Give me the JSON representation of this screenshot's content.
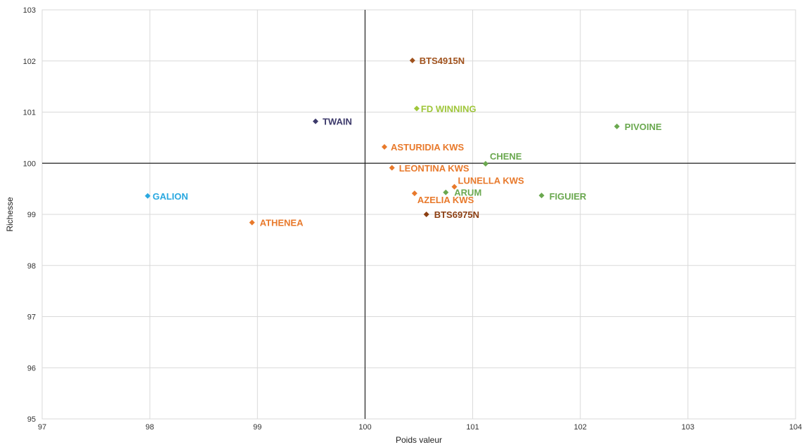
{
  "chart_data": {
    "type": "scatter",
    "title": "",
    "xlabel": "Poids valeur",
    "ylabel": "Richesse",
    "xlim": [
      97,
      104
    ],
    "ylim": [
      95,
      103
    ],
    "x_ticks": [
      "97",
      "98",
      "99",
      "100",
      "101",
      "102",
      "103",
      "104"
    ],
    "y_ticks": [
      "95",
      "96",
      "97",
      "98",
      "99",
      "100",
      "101",
      "102",
      "103"
    ],
    "reference_lines": {
      "x": 100,
      "y": 100
    },
    "grid": true,
    "legend": "none",
    "points": [
      {
        "label": "BTS4915N",
        "x": 100.44,
        "y": 102.01,
        "color": "#a0521d"
      },
      {
        "label": "FD WINNING",
        "x": 100.48,
        "y": 101.07,
        "color": "#9fc63a"
      },
      {
        "label": "TWAIN",
        "x": 99.54,
        "y": 100.82,
        "color": "#3d3a6b"
      },
      {
        "label": "PIVOINE",
        "x": 102.34,
        "y": 100.72,
        "color": "#6aa84f"
      },
      {
        "label": "ASTURIDIA KWS",
        "x": 100.18,
        "y": 100.32,
        "color": "#e8792b"
      },
      {
        "label": "CHENE",
        "x": 101.12,
        "y": 99.99,
        "color": "#6aa84f"
      },
      {
        "label": "LEONTINA KWS",
        "x": 100.25,
        "y": 99.91,
        "color": "#e8792b"
      },
      {
        "label": "LUNELLA KWS",
        "x": 100.83,
        "y": 99.54,
        "color": "#e8792b"
      },
      {
        "label": "ARUM",
        "x": 100.75,
        "y": 99.43,
        "color": "#6aa84f"
      },
      {
        "label": "AZELIA KWS",
        "x": 100.46,
        "y": 99.41,
        "color": "#e8792b"
      },
      {
        "label": "FIGUIER",
        "x": 101.64,
        "y": 99.37,
        "color": "#6aa84f"
      },
      {
        "label": "GALION",
        "x": 97.98,
        "y": 99.36,
        "color": "#29a8e0"
      },
      {
        "label": "BTS6975N",
        "x": 100.57,
        "y": 99.0,
        "color": "#8b3e12"
      },
      {
        "label": "ATHENEA",
        "x": 98.95,
        "y": 98.84,
        "color": "#e8792b"
      }
    ]
  }
}
